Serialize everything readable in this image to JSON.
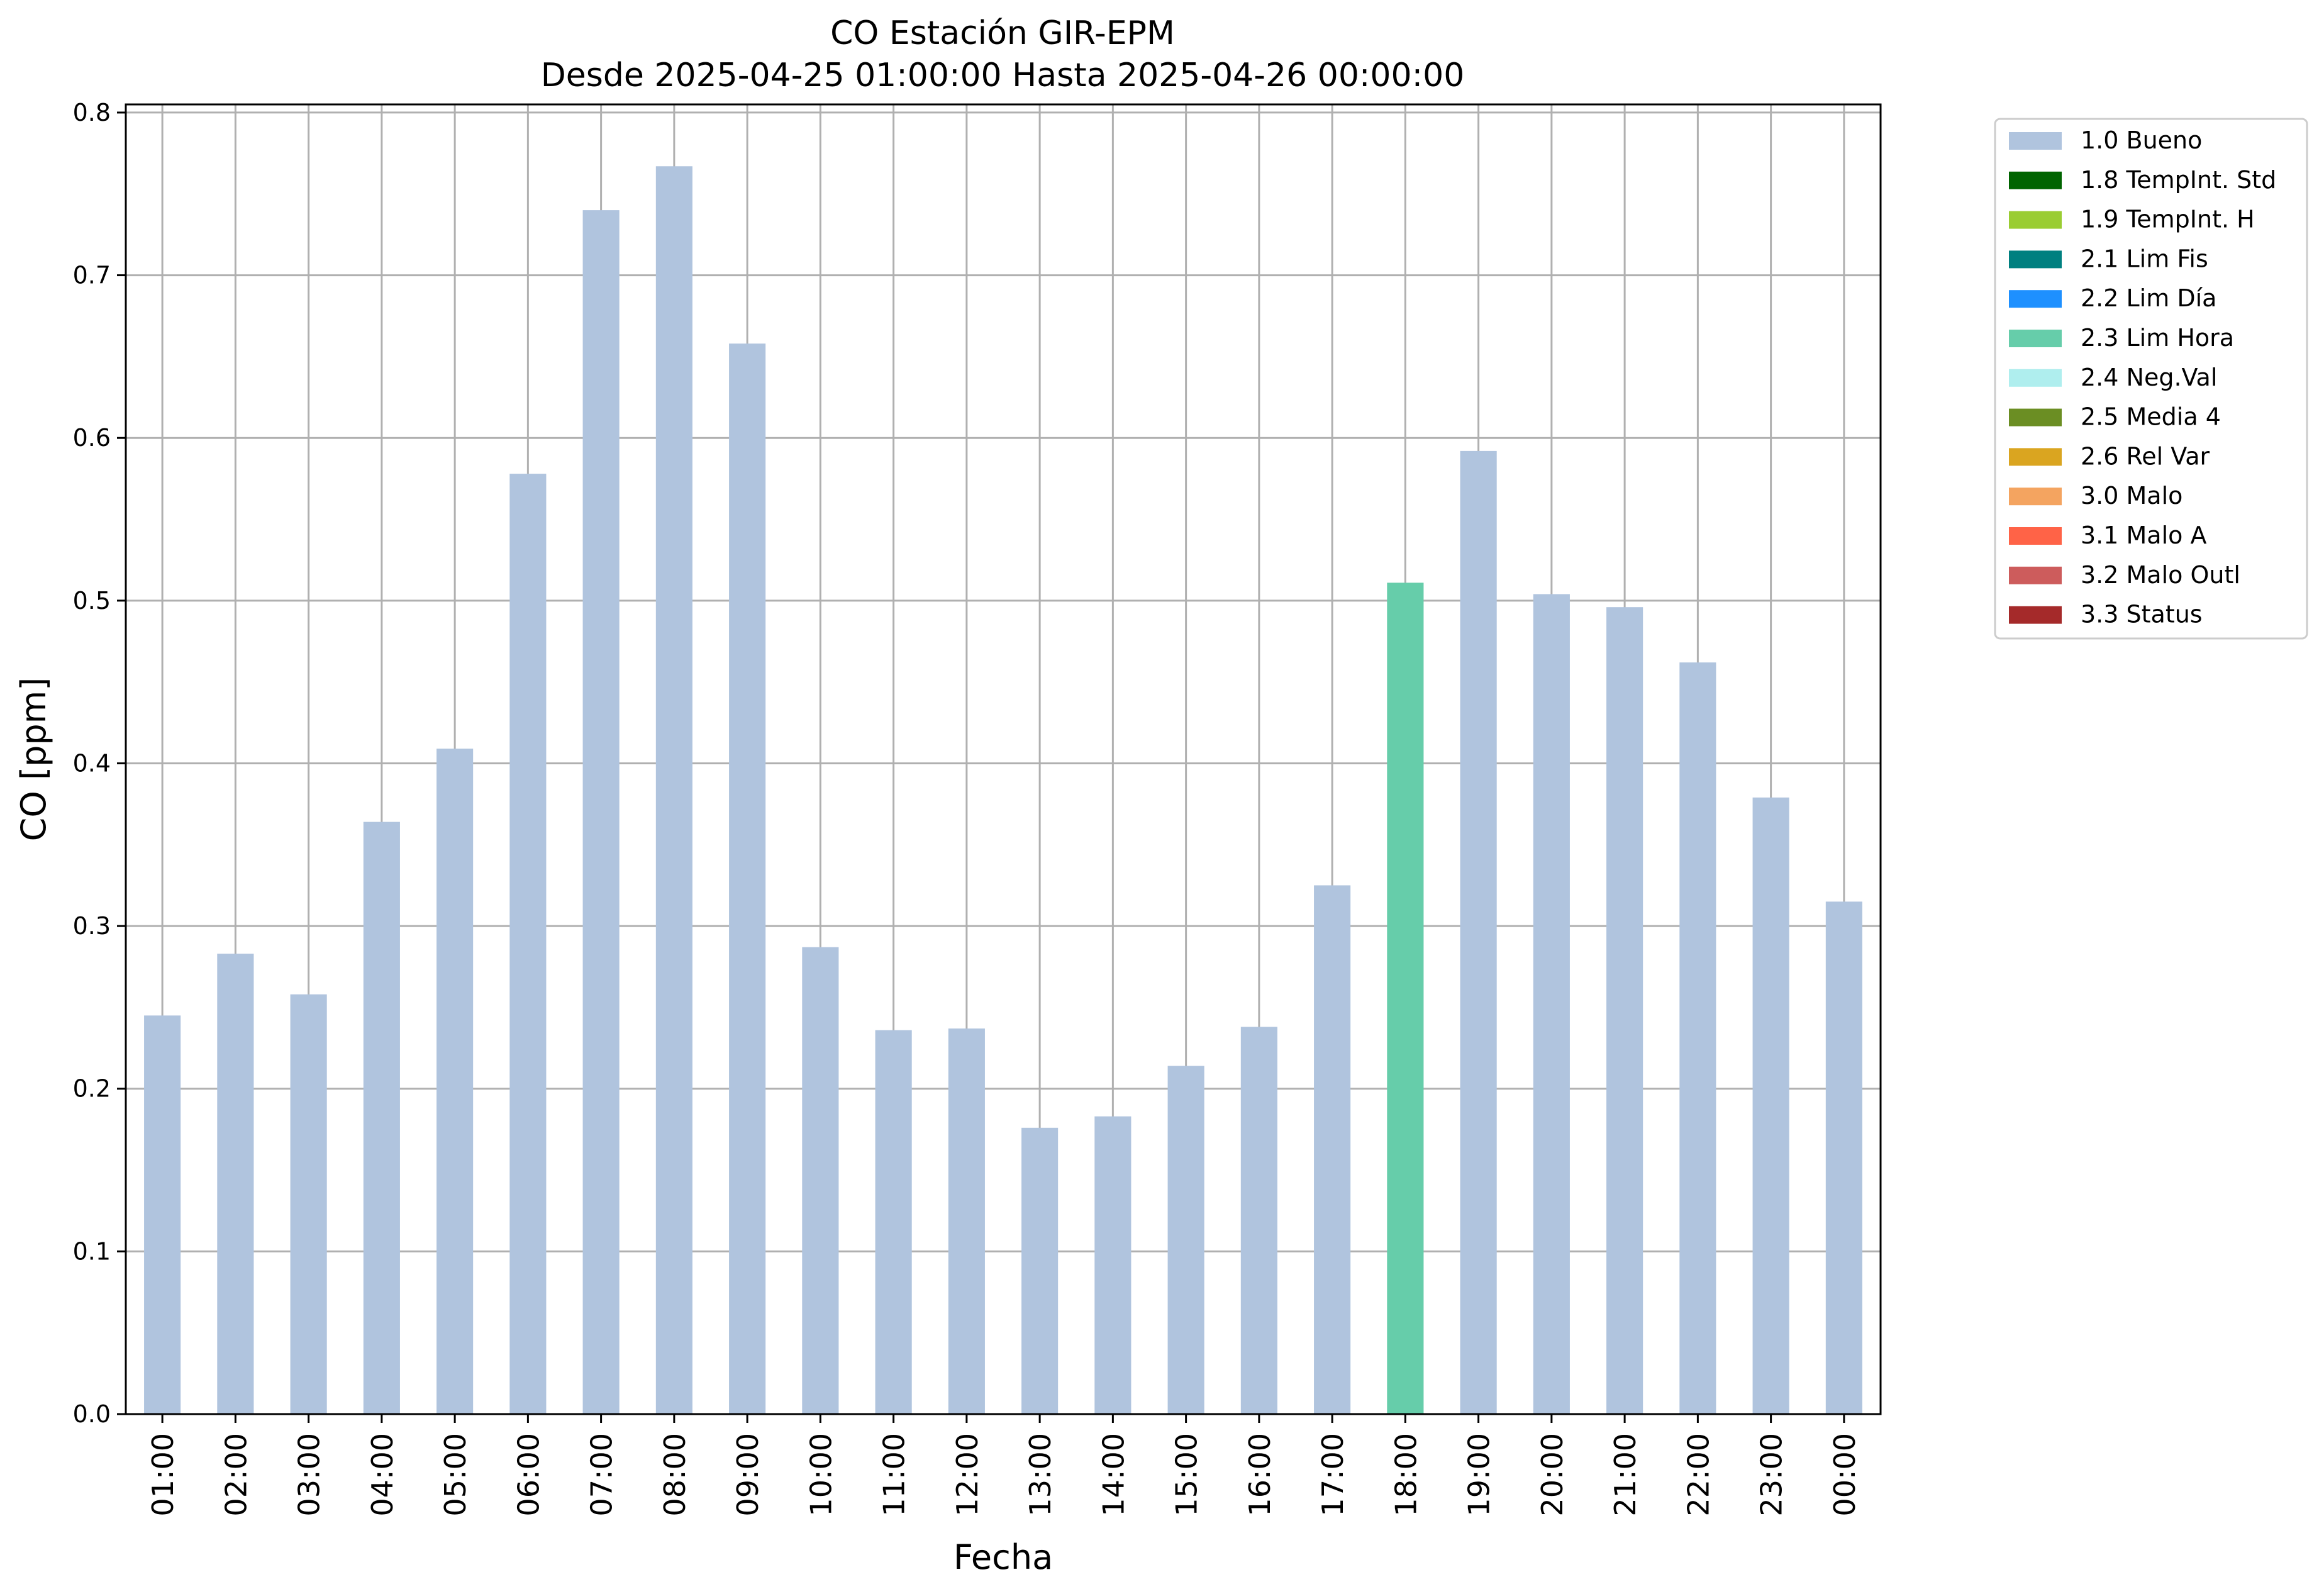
{
  "chart_data": {
    "type": "bar",
    "title": "CO Estación GIR-EPM",
    "subtitle": "Desde 2025-04-25 01:00:00 Hasta 2025-04-26 00:00:00",
    "xlabel": "Fecha",
    "ylabel": "CO [ppm]",
    "ylim": [
      0,
      0.805
    ],
    "yticks": [
      "0.0",
      "0.1",
      "0.2",
      "0.3",
      "0.4",
      "0.5",
      "0.6",
      "0.7",
      "0.8"
    ],
    "grid": true,
    "legend_position": "outside-top-right",
    "categories": [
      "01:00",
      "02:00",
      "03:00",
      "04:00",
      "05:00",
      "06:00",
      "07:00",
      "08:00",
      "09:00",
      "10:00",
      "11:00",
      "12:00",
      "13:00",
      "14:00",
      "15:00",
      "16:00",
      "17:00",
      "18:00",
      "19:00",
      "20:00",
      "21:00",
      "22:00",
      "23:00",
      "00:00"
    ],
    "values": [
      0.245,
      0.283,
      0.258,
      0.364,
      0.409,
      0.578,
      0.74,
      0.767,
      0.658,
      0.287,
      0.236,
      0.237,
      0.176,
      0.183,
      0.214,
      0.238,
      0.325,
      0.511,
      0.592,
      0.504,
      0.496,
      0.462,
      0.379,
      0.315
    ],
    "value_flags": [
      "1.0 Bueno",
      "1.0 Bueno",
      "1.0 Bueno",
      "1.0 Bueno",
      "1.0 Bueno",
      "1.0 Bueno",
      "1.0 Bueno",
      "1.0 Bueno",
      "1.0 Bueno",
      "1.0 Bueno",
      "1.0 Bueno",
      "1.0 Bueno",
      "1.0 Bueno",
      "1.0 Bueno",
      "1.0 Bueno",
      "1.0 Bueno",
      "1.0 Bueno",
      "2.3 Lim Hora",
      "1.0 Bueno",
      "1.0 Bueno",
      "1.0 Bueno",
      "1.0 Bueno",
      "1.0 Bueno",
      "1.0 Bueno"
    ],
    "legend": [
      {
        "label": "1.0 Bueno",
        "color": "#b0c4de"
      },
      {
        "label": "1.8 TempInt. Std",
        "color": "#006400"
      },
      {
        "label": "1.9 TempInt. H",
        "color": "#9acd32"
      },
      {
        "label": "2.1 Lim Fis",
        "color": "#008080"
      },
      {
        "label": "2.2 Lim Día",
        "color": "#1e90ff"
      },
      {
        "label": "2.3 Lim Hora",
        "color": "#66cdaa"
      },
      {
        "label": "2.4 Neg.Val",
        "color": "#afeeee"
      },
      {
        "label": "2.5 Media 4",
        "color": "#6b8e23"
      },
      {
        "label": "2.6 Rel Var",
        "color": "#daa520"
      },
      {
        "label": "3.0 Malo",
        "color": "#f4a460"
      },
      {
        "label": "3.1 Malo A",
        "color": "#ff6347"
      },
      {
        "label": "3.2 Malo Outl",
        "color": "#cd5c5c"
      },
      {
        "label": "3.3 Status",
        "color": "#a52a2a"
      }
    ]
  }
}
